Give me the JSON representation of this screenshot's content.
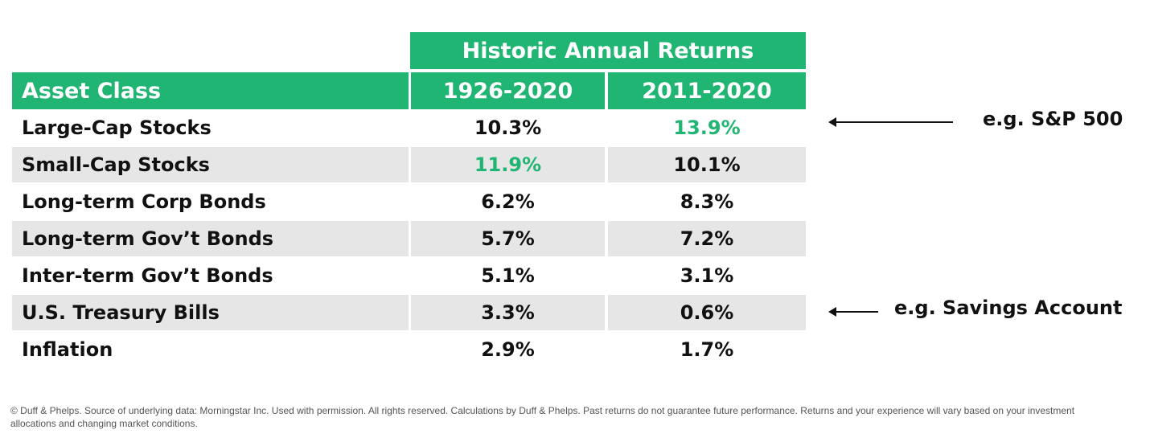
{
  "chart_data": {
    "type": "table",
    "title": "Historic Annual Returns",
    "columns": [
      "Asset Class",
      "1926-2020",
      "2011-2020"
    ],
    "rows": [
      {
        "asset": "Large-Cap Stocks",
        "v1926_2020": "10.3%",
        "v2011_2020": "13.9%",
        "highlight": "2011-2020"
      },
      {
        "asset": "Small-Cap Stocks",
        "v1926_2020": "11.9%",
        "v2011_2020": "10.1%",
        "highlight": "1926-2020"
      },
      {
        "asset": "Long-term Corp Bonds",
        "v1926_2020": "6.2%",
        "v2011_2020": "8.3%"
      },
      {
        "asset": "Long-term Gov’t Bonds",
        "v1926_2020": "5.7%",
        "v2011_2020": "7.2%"
      },
      {
        "asset": "Inter-term Gov’t Bonds",
        "v1926_2020": "5.1%",
        "v2011_2020": "3.1%"
      },
      {
        "asset": "U.S. Treasury Bills",
        "v1926_2020": "3.3%",
        "v2011_2020": "0.6%"
      },
      {
        "asset": "Inflation",
        "v1926_2020": "2.9%",
        "v2011_2020": "1.7%"
      }
    ],
    "annotations": [
      {
        "row": "Large-Cap Stocks",
        "text": "e.g. S&P 500"
      },
      {
        "row": "U.S. Treasury Bills",
        "text": "e.g. Savings Account"
      }
    ]
  },
  "colors": {
    "header": "#21b573",
    "highlight": "#21b573",
    "stripe": "#e6e6e6"
  },
  "footnote": "© Duff & Phelps.  Source of underlying data:  Morningstar Inc.  Used with permission.  All rights reserved.  Calculations by Duff & Phelps. Past returns do not guarantee future performance.  Returns and your experience will vary based on your investment allocations and changing market conditions."
}
